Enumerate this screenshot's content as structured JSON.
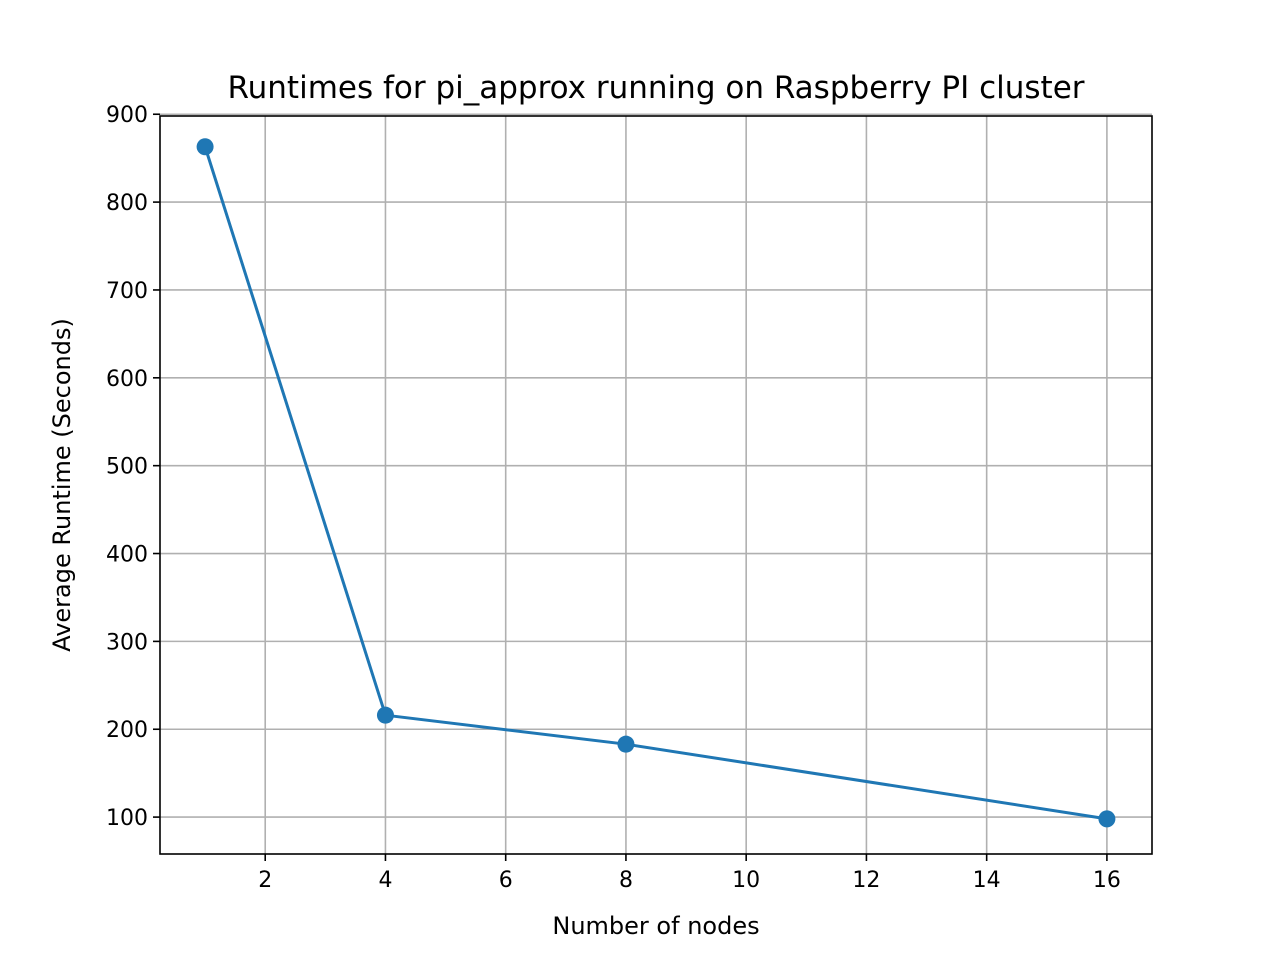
{
  "chart_data": {
    "type": "line",
    "title": "Runtimes for pi_approx running on Raspberry PI cluster",
    "xlabel": "Number of nodes",
    "ylabel": "Average Runtime (Seconds)",
    "xlim": [
      0.25,
      16.75
    ],
    "ylim": [
      58,
      898
    ],
    "xticks": [
      2,
      4,
      6,
      8,
      10,
      12,
      14,
      16
    ],
    "yticks": [
      100,
      200,
      300,
      400,
      500,
      600,
      700,
      800,
      900
    ],
    "grid": true,
    "series": [
      {
        "x": [
          1,
          4,
          8,
          16
        ],
        "y": [
          863,
          216,
          183,
          98
        ],
        "color": "#1f77b4",
        "marker": "circle"
      }
    ]
  }
}
